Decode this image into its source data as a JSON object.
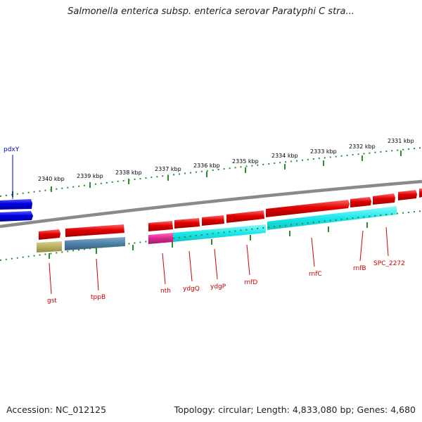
{
  "title": "Salmonella enterica subsp. enterica serovar Paratyphi C stra...",
  "accession": "Accession: NC_012125",
  "summary": "Topology: circular; Length: 4,833,080 bp; Genes: 4,680",
  "colors": {
    "backbone": "#8a8a8a",
    "tick": "#2e8b2e",
    "forward_gene": "#e00000",
    "reverse_gene": "#0000dd",
    "label_forward": "#0000cc",
    "label_reverse": "#cc0000",
    "cog_olive": "#b8b060",
    "cog_steel": "#4e7fa8",
    "cog_magenta": "#e02090",
    "cog_cyan": "#19e8ec"
  },
  "scale_labels": [
    "2340 kbp",
    "2339 kbp",
    "2338 kbp",
    "2337 kbp",
    "2336 kbp",
    "2335 kbp",
    "2334 kbp",
    "2333 kbp",
    "2332 kbp",
    "2331 kbp"
  ],
  "gene_labels_top": [
    "pdxY"
  ],
  "gene_labels_bottom": [
    "gst",
    "tppB",
    "nth",
    "ydgQ",
    "ydgP",
    "rnfD",
    "rnfC",
    "rnfB",
    "SPC_2272"
  ]
}
